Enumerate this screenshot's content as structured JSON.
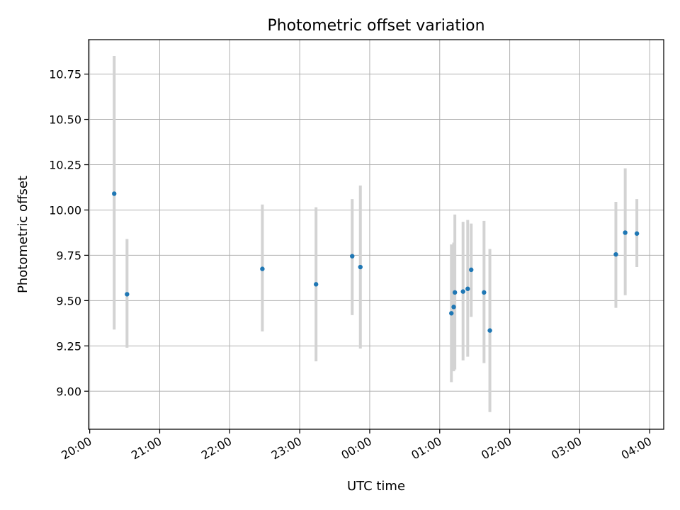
{
  "chart_data": {
    "type": "scatter",
    "title": "Photometric offset variation",
    "xlabel": "UTC time",
    "ylabel": "Photometric offset",
    "x_tick_labels": [
      "20:00",
      "21:00",
      "22:00",
      "23:00",
      "00:00",
      "01:00",
      "02:00",
      "03:00",
      "04:00"
    ],
    "y_tick_labels": [
      "9.00",
      "9.25",
      "9.50",
      "9.75",
      "10.00",
      "10.25",
      "10.50",
      "10.75"
    ],
    "x_ticks": [
      "20:00",
      "21:00",
      "22:00",
      "23:00",
      "00:00",
      "01:00",
      "02:00",
      "03:00",
      "04:00"
    ],
    "y_ticks": [
      9.0,
      9.25,
      9.5,
      9.75,
      10.0,
      10.25,
      10.5,
      10.75
    ],
    "xlim": [
      "19:59",
      "04:12"
    ],
    "ylim": [
      8.79,
      10.94
    ],
    "grid": true,
    "point_color": "#1f77b4",
    "errorbar_color": "#d3d3d3",
    "points": [
      {
        "x": "20:21",
        "y": 10.09,
        "ylow": 9.34,
        "yhigh": 10.85
      },
      {
        "x": "20:32",
        "y": 9.535,
        "ylow": 9.24,
        "yhigh": 9.84
      },
      {
        "x": "22:28",
        "y": 9.675,
        "ylow": 9.33,
        "yhigh": 10.03
      },
      {
        "x": "23:14",
        "y": 9.59,
        "ylow": 9.165,
        "yhigh": 10.015
      },
      {
        "x": "23:45",
        "y": 9.745,
        "ylow": 9.42,
        "yhigh": 10.06
      },
      {
        "x": "23:52",
        "y": 9.685,
        "ylow": 9.235,
        "yhigh": 10.135
      },
      {
        "x": "01:10",
        "y": 9.43,
        "ylow": 9.05,
        "yhigh": 9.81
      },
      {
        "x": "01:12",
        "y": 9.465,
        "ylow": 9.11,
        "yhigh": 9.82
      },
      {
        "x": "01:13",
        "y": 9.545,
        "ylow": 9.12,
        "yhigh": 9.975
      },
      {
        "x": "01:20",
        "y": 9.55,
        "ylow": 9.17,
        "yhigh": 9.935
      },
      {
        "x": "01:24",
        "y": 9.565,
        "ylow": 9.19,
        "yhigh": 9.945
      },
      {
        "x": "01:27",
        "y": 9.67,
        "ylow": 9.41,
        "yhigh": 9.925
      },
      {
        "x": "01:38",
        "y": 9.545,
        "ylow": 9.155,
        "yhigh": 9.94
      },
      {
        "x": "01:43",
        "y": 9.335,
        "ylow": 8.885,
        "yhigh": 9.785
      },
      {
        "x": "03:31",
        "y": 9.755,
        "ylow": 9.46,
        "yhigh": 10.045
      },
      {
        "x": "03:39",
        "y": 9.875,
        "ylow": 9.53,
        "yhigh": 10.23
      },
      {
        "x": "03:49",
        "y": 9.87,
        "ylow": 9.685,
        "yhigh": 10.06
      }
    ]
  }
}
